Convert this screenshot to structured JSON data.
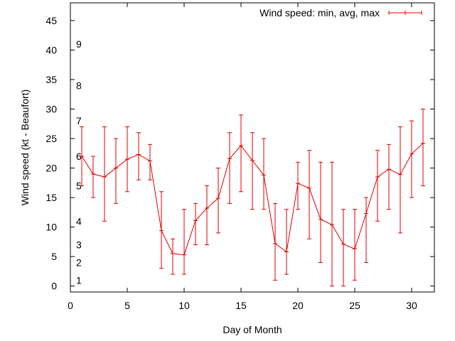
{
  "chart_data": {
    "type": "line",
    "xlabel": "Day of Month",
    "ylabel": "Wind speed (kt - Beaufort)",
    "xlim": [
      0,
      32
    ],
    "ylim": [
      -1,
      48
    ],
    "xticks": [
      0,
      5,
      10,
      15,
      20,
      25,
      30
    ],
    "yticks": [
      0,
      5,
      10,
      15,
      20,
      25,
      30,
      35,
      40,
      45
    ],
    "legend": "top-right",
    "grid": false,
    "series_color": "#e00000",
    "beaufort_labels": [
      {
        "label": "1",
        "kt": 1
      },
      {
        "label": "2",
        "kt": 4
      },
      {
        "label": "3",
        "kt": 7
      },
      {
        "label": "4",
        "kt": 11
      },
      {
        "label": "5",
        "kt": 17
      },
      {
        "label": "6",
        "kt": 22
      },
      {
        "label": "7",
        "kt": 28
      },
      {
        "label": "8",
        "kt": 34
      },
      {
        "label": "9",
        "kt": 41
      }
    ],
    "series": [
      {
        "name": "Wind speed: min, avg, max",
        "x": [
          1,
          2,
          3,
          4,
          5,
          6,
          7,
          8,
          9,
          10,
          11,
          12,
          13,
          14,
          15,
          16,
          17,
          18,
          19,
          20,
          21,
          22,
          23,
          24,
          25,
          26,
          27,
          28,
          29,
          30,
          31
        ],
        "avg": [
          22,
          19,
          18.5,
          20,
          21.5,
          22.3,
          21.2,
          9.4,
          5.5,
          5.3,
          11.1,
          13.2,
          14.9,
          21.6,
          23.8,
          21.3,
          18.8,
          7.2,
          5.8,
          17.4,
          16.6,
          11.3,
          10.4,
          7.1,
          6.3,
          12.3,
          18.5,
          19.8,
          18.9,
          22.4,
          24.2
        ],
        "min": [
          17,
          15,
          11,
          14,
          16,
          18,
          18,
          3,
          2,
          2,
          7,
          7,
          9,
          14,
          16,
          13,
          13,
          1,
          2,
          13,
          8,
          4,
          0,
          0,
          1,
          4,
          11,
          13,
          9,
          15,
          17
        ],
        "max": [
          27,
          22,
          27,
          25,
          27,
          26,
          24,
          16,
          8,
          13,
          14,
          17,
          20,
          26,
          29,
          26,
          25,
          14,
          13,
          21,
          23,
          21,
          21,
          13,
          13,
          15,
          23,
          24,
          27,
          28,
          30
        ]
      }
    ]
  }
}
